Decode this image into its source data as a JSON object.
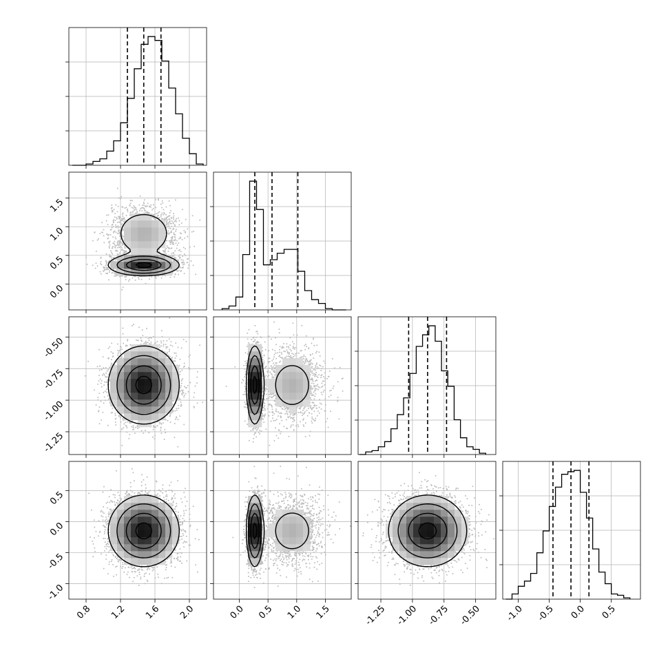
{
  "chart_data": {
    "type": "corner",
    "n_params": 4,
    "grid": true,
    "tick_labels": {
      "p0": [
        "0.8",
        "1.2",
        "1.6",
        "2.0"
      ],
      "p1": [
        "0.0",
        "0.5",
        "1.0",
        "1.5"
      ],
      "p2": [
        "-1.25",
        "-1.00",
        "-0.75",
        "-0.50"
      ],
      "p3": [
        "-1.0",
        "-0.5",
        "0.0",
        "0.5"
      ]
    },
    "params": [
      {
        "range": [
          0.6,
          2.2
        ],
        "ticks": [
          0.8,
          1.2,
          1.6,
          2.0
        ],
        "quantiles": [
          1.28,
          1.47,
          1.67
        ],
        "hist": {
          "edges": [
            0.64,
            0.72,
            0.8,
            0.88,
            0.96,
            1.04,
            1.12,
            1.2,
            1.28,
            1.36,
            1.44,
            1.52,
            1.6,
            1.68,
            1.76,
            1.84,
            1.92,
            2.0,
            2.08,
            2.16
          ],
          "counts": [
            0.0,
            0.0,
            0.01,
            0.03,
            0.05,
            0.11,
            0.19,
            0.33,
            0.52,
            0.75,
            0.94,
            1.0,
            0.97,
            0.81,
            0.6,
            0.4,
            0.21,
            0.09,
            0.01
          ],
          "ymax": 1.0
        }
      },
      {
        "range": [
          -0.45,
          1.95
        ],
        "ticks": [
          0.0,
          0.5,
          1.0,
          1.5
        ],
        "quantiles": [
          0.27,
          0.57,
          1.02
        ],
        "hist": {
          "edges": [
            -0.3,
            -0.18,
            -0.06,
            0.06,
            0.18,
            0.3,
            0.42,
            0.54,
            0.66,
            0.78,
            0.9,
            1.02,
            1.14,
            1.26,
            1.38,
            1.5,
            1.62,
            1.74,
            1.86
          ],
          "counts": [
            0.01,
            0.03,
            0.1,
            0.43,
            1.0,
            0.78,
            0.35,
            0.39,
            0.44,
            0.47,
            0.47,
            0.3,
            0.15,
            0.08,
            0.05,
            0.01,
            0.0,
            0.0
          ],
          "ymax": 1.0
        }
      },
      {
        "range": [
          -1.43,
          -0.34
        ],
        "ticks": [
          -1.25,
          -1.0,
          -0.75,
          -0.5
        ],
        "quantiles": [
          -1.03,
          -0.88,
          -0.73
        ],
        "hist": {
          "edges": [
            -1.42,
            -1.37,
            -1.32,
            -1.27,
            -1.22,
            -1.17,
            -1.12,
            -1.07,
            -1.02,
            -0.97,
            -0.92,
            -0.87,
            -0.82,
            -0.77,
            -0.72,
            -0.67,
            -0.62,
            -0.57,
            -0.52,
            -0.47,
            -0.42
          ],
          "counts": [
            0.0,
            0.02,
            0.03,
            0.06,
            0.1,
            0.2,
            0.31,
            0.44,
            0.63,
            0.84,
            0.93,
            1.0,
            0.88,
            0.65,
            0.53,
            0.27,
            0.13,
            0.06,
            0.04,
            0.01
          ],
          "ymax": 1.0
        }
      },
      {
        "range": [
          -1.25,
          0.97
        ],
        "ticks": [
          -1.0,
          -0.5,
          0.0,
          0.5
        ],
        "quantiles": [
          -0.44,
          -0.15,
          0.14
        ],
        "hist": {
          "edges": [
            -1.2,
            -1.1,
            -1.0,
            -0.9,
            -0.8,
            -0.7,
            -0.6,
            -0.5,
            -0.4,
            -0.3,
            -0.2,
            -0.1,
            0.0,
            0.1,
            0.2,
            0.3,
            0.4,
            0.5,
            0.6,
            0.7,
            0.8
          ],
          "counts": [
            0.0,
            0.04,
            0.1,
            0.14,
            0.2,
            0.36,
            0.53,
            0.72,
            0.87,
            0.97,
            0.99,
            1.0,
            0.83,
            0.63,
            0.39,
            0.21,
            0.12,
            0.04,
            0.03,
            0.01
          ],
          "ymax": 1.0
        }
      }
    ],
    "pairs": [
      {
        "row": 1,
        "col": 0,
        "modes": [
          {
            "x": 1.47,
            "y": 0.33,
            "sx": 0.2,
            "sy": 0.09,
            "w": 0.55
          },
          {
            "x": 1.47,
            "y": 0.88,
            "sx": 0.2,
            "sy": 0.25,
            "w": 0.45
          }
        ]
      },
      {
        "row": 2,
        "col": 0,
        "modes": [
          {
            "x": 1.47,
            "y": -0.88,
            "sx": 0.2,
            "sy": 0.15,
            "w": 1.0
          }
        ]
      },
      {
        "row": 2,
        "col": 1,
        "modes": [
          {
            "x": 0.27,
            "y": -0.88,
            "sx": 0.07,
            "sy": 0.15,
            "w": 0.55
          },
          {
            "x": 0.92,
            "y": -0.88,
            "sx": 0.28,
            "sy": 0.15,
            "w": 0.45
          }
        ]
      },
      {
        "row": 3,
        "col": 0,
        "modes": [
          {
            "x": 1.47,
            "y": -0.15,
            "sx": 0.2,
            "sy": 0.28,
            "w": 1.0
          }
        ]
      },
      {
        "row": 3,
        "col": 1,
        "modes": [
          {
            "x": 0.27,
            "y": -0.15,
            "sx": 0.07,
            "sy": 0.28,
            "w": 0.55
          },
          {
            "x": 0.92,
            "y": -0.15,
            "sx": 0.28,
            "sy": 0.28,
            "w": 0.45
          }
        ]
      },
      {
        "row": 3,
        "col": 2,
        "modes": [
          {
            "x": -0.88,
            "y": -0.15,
            "sx": 0.15,
            "sy": 0.28,
            "w": 1.0
          }
        ]
      }
    ],
    "colors": {
      "line": "#000000",
      "grid": "#b0b0b0",
      "points": "#bdbdbd"
    }
  }
}
